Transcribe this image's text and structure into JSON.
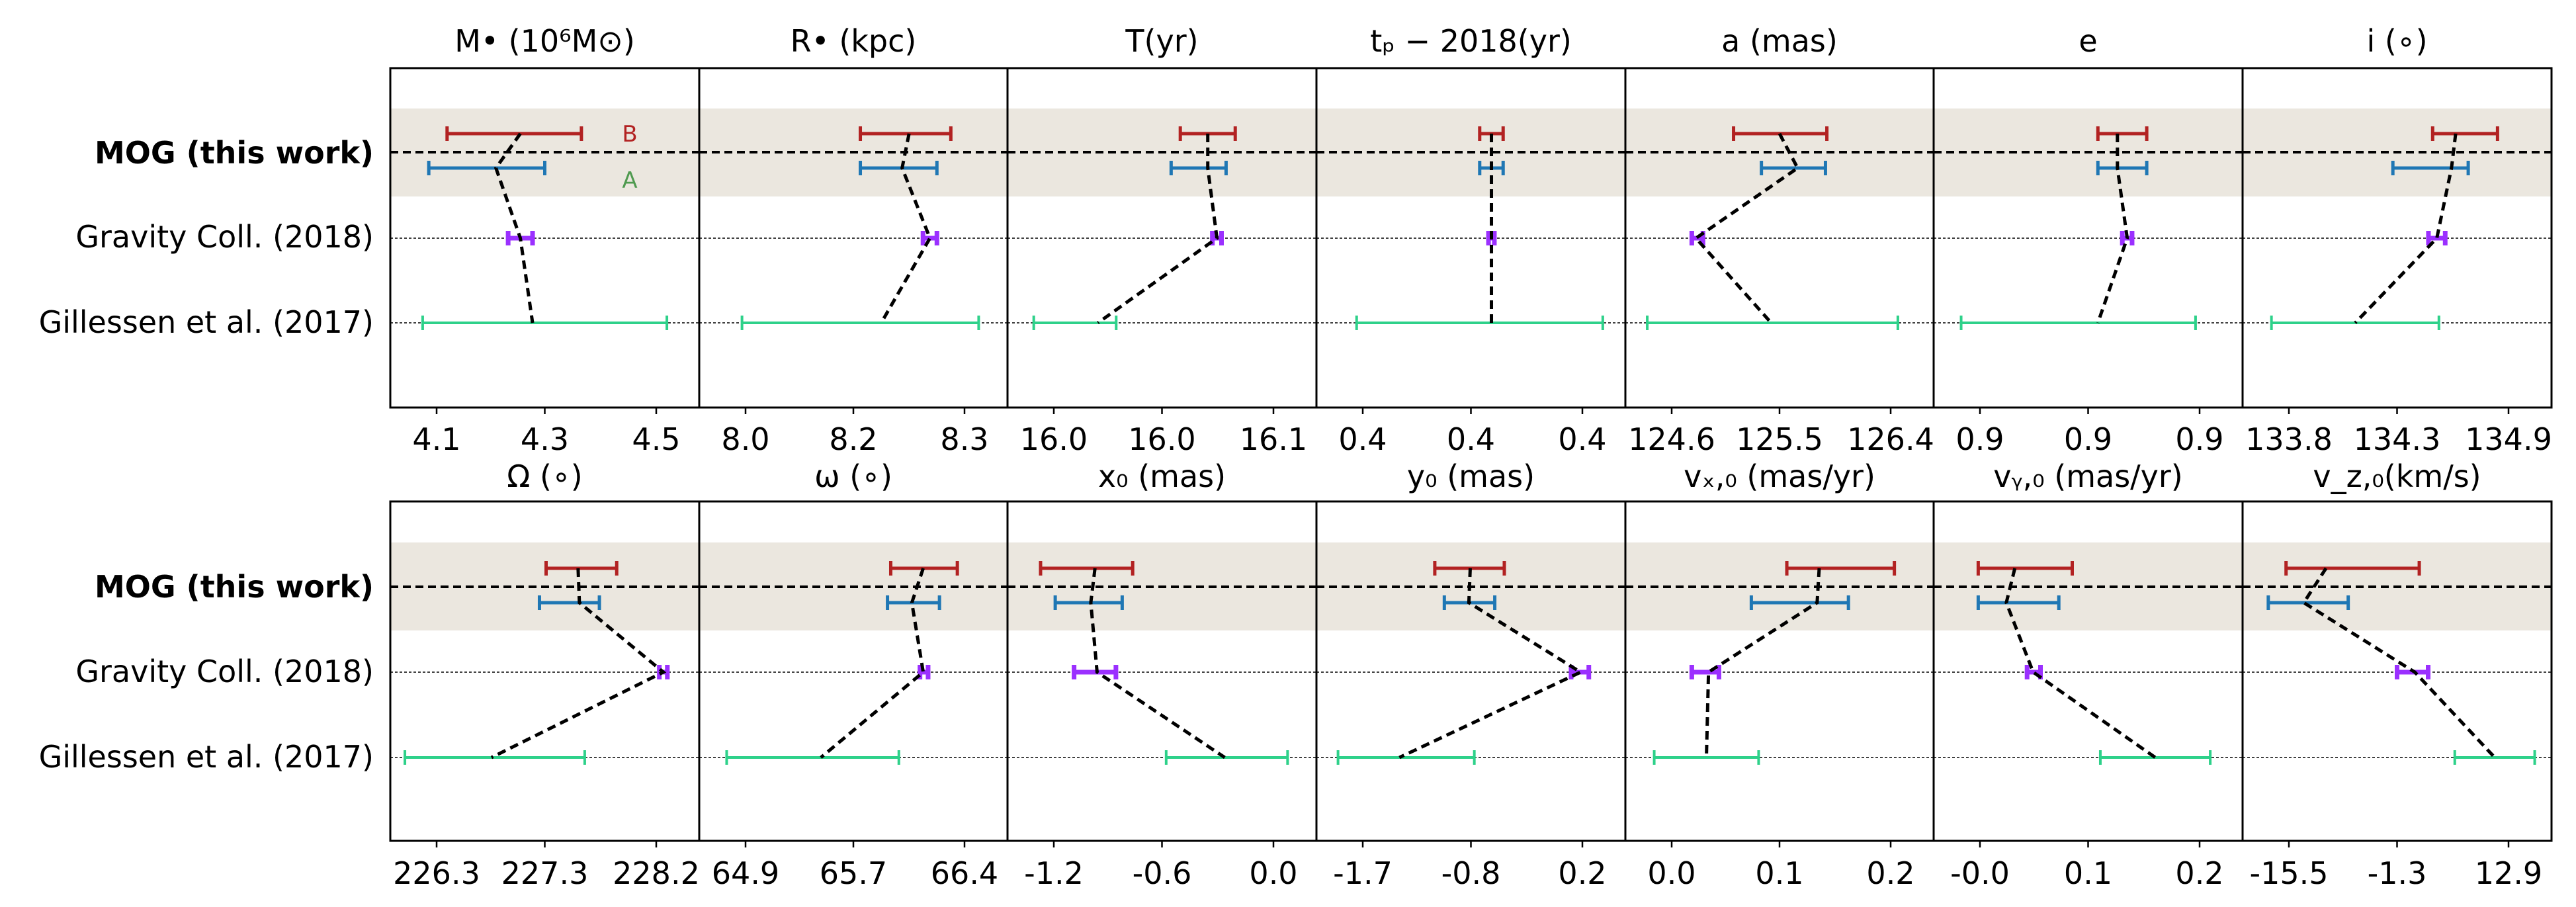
{
  "chart_data": {
    "type": "errorbar-comparison",
    "row_labels": [
      "MOG (this work)",
      "Gravity Coll. (2018)",
      "Gillessen et al. (2017)"
    ],
    "set_labels": [
      "B",
      "A"
    ],
    "colors": {
      "B": "#b22222",
      "A": "#1f77b4",
      "gravity": "#9b30ff",
      "gillessen": "#2ed18a",
      "band": "#ebe7df"
    },
    "panels": [
      {
        "title": "M• (10⁶M⊙)",
        "ticks": [
          "4.1",
          "4.3",
          "4.5"
        ],
        "xlim": [
          4.06,
          4.54
        ],
        "B": {
          "value": 4.26,
          "lo": 4.14,
          "hi": 4.36
        },
        "A": {
          "value": 4.22,
          "lo": 4.11,
          "hi": 4.3
        },
        "gravity": {
          "value": 4.26,
          "lo": 4.24,
          "hi": 4.28
        },
        "gillessen": {
          "value": 4.28,
          "lo": 4.1,
          "hi": 4.5
        }
      },
      {
        "title": "R• (kpc)",
        "ticks": [
          "8.0",
          "8.2",
          "8.3"
        ],
        "xlim": [
          7.95,
          8.37
        ],
        "B": {
          "value": 8.24,
          "lo": 8.17,
          "hi": 8.3
        },
        "A": {
          "value": 8.23,
          "lo": 8.17,
          "hi": 8.28
        },
        "gravity": {
          "value": 8.27,
          "lo": 8.26,
          "hi": 8.28
        },
        "gillessen": {
          "value": 8.2,
          "lo": 8.0,
          "hi": 8.34
        }
      },
      {
        "title": "T(yr)",
        "ticks": [
          "16.0",
          "16.0",
          "16.1"
        ],
        "xlim": [
          15.86,
          16.18
        ],
        "B": {
          "value": 16.07,
          "lo": 16.04,
          "hi": 16.1
        },
        "A": {
          "value": 16.07,
          "lo": 16.03,
          "hi": 16.09
        },
        "gravity": {
          "value": 16.08,
          "lo": 16.075,
          "hi": 16.085
        },
        "gillessen": {
          "value": 15.95,
          "lo": 15.88,
          "hi": 15.97
        }
      },
      {
        "title": "tₚ − 2018(yr)",
        "ticks": [
          "0.4",
          "0.4",
          "0.4"
        ],
        "xlim": [
          0.35,
          0.4
        ],
        "B": {
          "value": 0.3785,
          "lo": 0.3765,
          "hi": 0.3805
        },
        "A": {
          "value": 0.3785,
          "lo": 0.3765,
          "hi": 0.3805
        },
        "gravity": {
          "value": 0.3785,
          "lo": 0.378,
          "hi": 0.379
        },
        "gillessen": {
          "value": 0.3785,
          "lo": 0.3555,
          "hi": 0.3975
        }
      },
      {
        "title": "a (mas)",
        "ticks": [
          "124.6",
          "125.5",
          "126.4"
        ],
        "xlim": [
          124.5,
          126.6
        ],
        "B": {
          "value": 125.55,
          "lo": 125.22,
          "hi": 125.89
        },
        "A": {
          "value": 125.68,
          "lo": 125.42,
          "hi": 125.88
        },
        "gravity": {
          "value": 124.95,
          "lo": 124.92,
          "hi": 125.0
        },
        "gillessen": {
          "value": 125.49,
          "lo": 124.6,
          "hi": 126.4
        }
      },
      {
        "title": "e",
        "ticks": [
          "0.9",
          "0.9",
          "0.9"
        ],
        "xlim": [
          0.883,
          0.889
        ],
        "B": {
          "value": 0.8866,
          "lo": 0.8862,
          "hi": 0.8872
        },
        "A": {
          "value": 0.8866,
          "lo": 0.8862,
          "hi": 0.8872
        },
        "gravity": {
          "value": 0.8868,
          "lo": 0.8867,
          "hi": 0.8869
        },
        "gillessen": {
          "value": 0.8862,
          "lo": 0.8834,
          "hi": 0.8882
        }
      },
      {
        "title": "i (∘)",
        "ticks": [
          "133.8",
          "134.3",
          "134.9"
        ],
        "xlim": [
          133.7,
          135.1
        ],
        "B": {
          "value": 134.68,
          "lo": 134.57,
          "hi": 134.88
        },
        "A": {
          "value": 134.66,
          "lo": 134.38,
          "hi": 134.74
        },
        "gravity": {
          "value": 134.59,
          "lo": 134.55,
          "hi": 134.63
        },
        "gillessen": {
          "value": 134.2,
          "lo": 133.8,
          "hi": 134.6
        }
      },
      {
        "title": "Ω (∘)",
        "ticks": [
          "226.3",
          "227.3",
          "228.2"
        ],
        "xlim": [
          226.2,
          228.4
        ],
        "B": {
          "value": 227.55,
          "lo": 227.31,
          "hi": 227.84
        },
        "A": {
          "value": 227.56,
          "lo": 227.26,
          "hi": 227.71
        },
        "gravity": {
          "value": 228.19,
          "lo": 228.16,
          "hi": 228.22
        },
        "gillessen": {
          "value": 226.9,
          "lo": 226.25,
          "hi": 227.6
        }
      },
      {
        "title": "ω (∘)",
        "ticks": [
          "64.9",
          "65.7",
          "66.4"
        ],
        "xlim": [
          64.8,
          66.6
        ],
        "B": {
          "value": 66.13,
          "lo": 65.93,
          "hi": 66.34
        },
        "A": {
          "value": 66.06,
          "lo": 65.91,
          "hi": 66.23
        },
        "gravity": {
          "value": 66.13,
          "lo": 66.11,
          "hi": 66.16
        },
        "gillessen": {
          "value": 65.5,
          "lo": 64.92,
          "hi": 65.98
        }
      },
      {
        "title": "x₀ (mas)",
        "ticks": [
          "-1.2",
          "-0.6",
          "0.0"
        ],
        "xlim": [
          -1.3,
          0.1
        ],
        "B": {
          "value": -0.92,
          "lo": -1.18,
          "hi": -0.74
        },
        "A": {
          "value": -0.94,
          "lo": -1.11,
          "hi": -0.79
        },
        "gravity": {
          "value": -0.91,
          "lo": -1.02,
          "hi": -0.82
        },
        "gillessen": {
          "value": -0.3,
          "lo": -0.58,
          "hi": 0.0
        }
      },
      {
        "title": "y₀ (mas)",
        "ticks": [
          "-1.7",
          "-0.8",
          "0.2"
        ],
        "xlim": [
          -1.8,
          0.35
        ],
        "B": {
          "value": -0.73,
          "lo": -0.99,
          "hi": -0.48
        },
        "A": {
          "value": -0.74,
          "lo": -0.92,
          "hi": -0.55
        },
        "gravity": {
          "value": 0.08,
          "lo": 0.01,
          "hi": 0.14
        },
        "gillessen": {
          "value": -1.25,
          "lo": -1.7,
          "hi": -0.7
        }
      },
      {
        "title": "vₓ,₀ (mas/yr)",
        "ticks": [
          "0.0",
          "0.1",
          "0.2"
        ],
        "xlim": [
          -0.02,
          0.26
        ],
        "B": {
          "value": 0.158,
          "lo": 0.127,
          "hi": 0.23
        },
        "A": {
          "value": 0.156,
          "lo": 0.093,
          "hi": 0.186
        },
        "gravity": {
          "value": 0.052,
          "lo": 0.036,
          "hi": 0.062
        },
        "gillessen": {
          "value": 0.05,
          "lo": 0.0,
          "hi": 0.1
        }
      },
      {
        "title": "vᵧ,₀ (mas/yr)",
        "ticks": [
          "-0.0",
          "0.1",
          "0.2"
        ],
        "xlim": [
          -0.02,
          0.22
        ],
        "B": {
          "value": 0.04,
          "lo": 0.01,
          "hi": 0.087
        },
        "A": {
          "value": 0.033,
          "lo": 0.01,
          "hi": 0.076
        },
        "gravity": {
          "value": 0.055,
          "lo": 0.05,
          "hi": 0.061
        },
        "gillessen": {
          "value": 0.155,
          "lo": 0.11,
          "hi": 0.2
        }
      },
      {
        "title": "v_z,₀(km/s)",
        "ticks": [
          "-15.5",
          "-1.3",
          "12.9"
        ],
        "xlim": [
          -18,
          15
        ],
        "B": {
          "value": -9.5,
          "lo": -14.0,
          "hi": 1.0
        },
        "A": {
          "value": -12.0,
          "lo": -16.0,
          "hi": -7.0
        },
        "gravity": {
          "value": 0.5,
          "lo": -1.5,
          "hi": 2.0
        },
        "gillessen": {
          "value": 9.5,
          "lo": 5.0,
          "hi": 14.0
        }
      }
    ]
  }
}
